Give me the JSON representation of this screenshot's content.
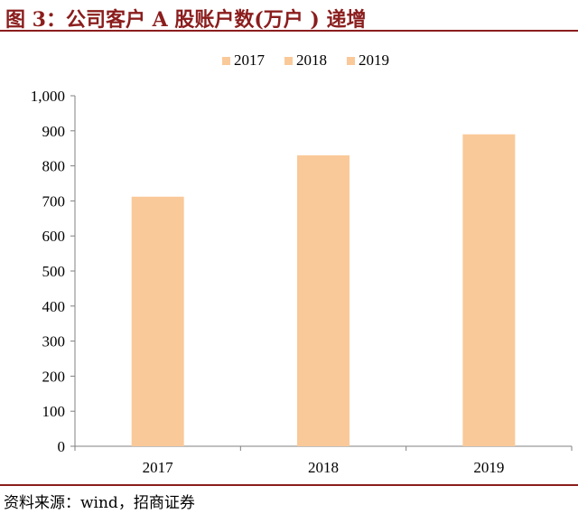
{
  "header": {
    "title": "图 3：公司客户 A 股账户数(万户 ) 递增"
  },
  "footer": {
    "source": "资料来源：wind，招商证券"
  },
  "colors": {
    "bar": "#fac999",
    "title": "#8b1d1d",
    "axis": "#808080"
  },
  "chart_data": {
    "type": "bar",
    "title": "",
    "xlabel": "",
    "ylabel": "",
    "categories": [
      "2017",
      "2018",
      "2019"
    ],
    "values": [
      712,
      830,
      890
    ],
    "legend": [
      "2017",
      "2018",
      "2019"
    ],
    "legend_position": "top-center",
    "ylim": [
      0,
      1000
    ],
    "yticks": [
      0,
      100,
      200,
      300,
      400,
      500,
      600,
      700,
      800,
      900,
      1000
    ],
    "ytick_labels": [
      "0",
      "100",
      "200",
      "300",
      "400",
      "500",
      "600",
      "700",
      "800",
      "900",
      "1,000"
    ],
    "grid": false
  }
}
